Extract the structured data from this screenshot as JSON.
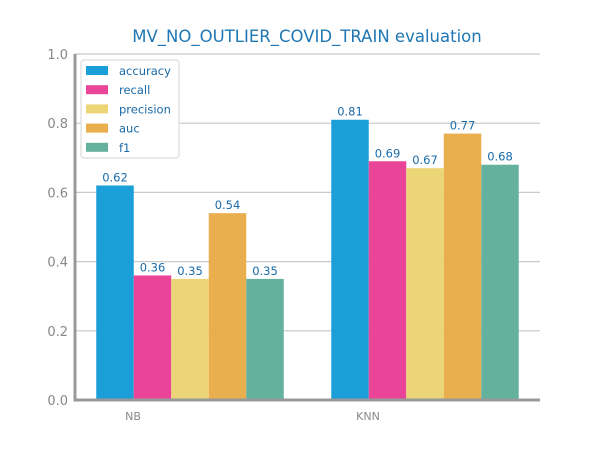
{
  "chart_data": {
    "type": "bar",
    "title": "MV_NO_OUTLIER_COVID_TRAIN evaluation",
    "xlabel": "",
    "ylabel": "",
    "categories": [
      "NB",
      "KNN"
    ],
    "ylim": [
      0.0,
      1.0
    ],
    "yticks": [
      "0.0",
      "0.2",
      "0.4",
      "0.6",
      "0.8",
      "1.0"
    ],
    "grid": "horizontal",
    "legend_position": "top-left",
    "series": [
      {
        "name": "accuracy",
        "color": "#1a9fd9",
        "values": [
          0.62,
          0.81
        ],
        "labels": [
          "0.62",
          "0.81"
        ]
      },
      {
        "name": "recall",
        "color": "#ea4498",
        "values": [
          0.36,
          0.69
        ],
        "labels": [
          "0.36",
          "0.69"
        ]
      },
      {
        "name": "precision",
        "color": "#ecd577",
        "values": [
          0.35,
          0.67
        ],
        "labels": [
          "0.35",
          "0.67"
        ]
      },
      {
        "name": "auc",
        "color": "#e9ae4e",
        "values": [
          0.54,
          0.77
        ],
        "labels": [
          "0.54",
          "0.77"
        ]
      },
      {
        "name": "f1",
        "color": "#64b29d",
        "values": [
          0.35,
          0.68
        ],
        "labels": [
          "0.35",
          "0.68"
        ]
      }
    ]
  }
}
